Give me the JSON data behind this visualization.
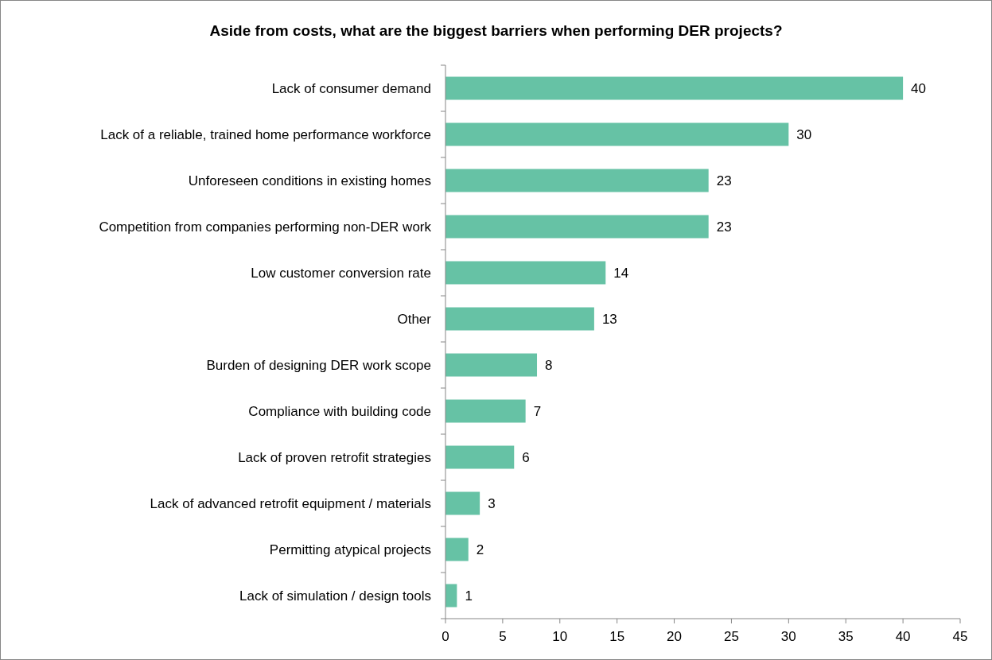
{
  "chart_data": {
    "type": "bar",
    "orientation": "horizontal",
    "title": "Aside from costs, what are the biggest barriers when performing DER projects?",
    "categories": [
      "Lack of consumer demand",
      "Lack of a reliable, trained home performance workforce",
      "Unforeseen conditions in existing homes",
      "Competition from companies performing non-DER work",
      "Low customer conversion rate",
      "Other",
      "Burden of designing DER work scope",
      "Compliance with building code",
      "Lack of proven retrofit strategies",
      "Lack of advanced retrofit equipment / materials",
      "Permitting atypical projects",
      "Lack of simulation / design tools"
    ],
    "values": [
      40,
      30,
      23,
      23,
      14,
      13,
      8,
      7,
      6,
      3,
      2,
      1
    ],
    "color": "#66c2a5",
    "data_labels": true,
    "xlim": [
      0,
      45
    ],
    "xticks": [
      0,
      5,
      10,
      15,
      20,
      25,
      30,
      35,
      40,
      45
    ],
    "grid": false
  }
}
